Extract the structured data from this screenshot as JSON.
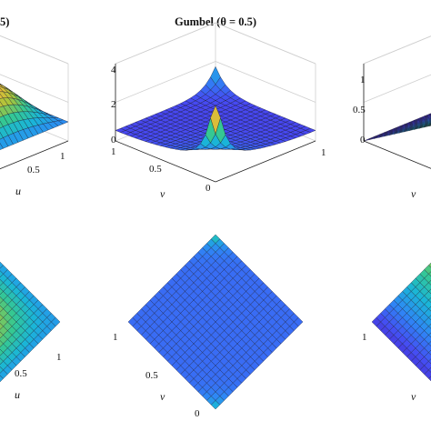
{
  "figure": {
    "left_partial_title": "5)",
    "colormap": [
      "#3e26a8",
      "#4748f2",
      "#2e87f5",
      "#1ab5d8",
      "#35c892",
      "#a8c53b",
      "#f0ba38",
      "#f9fb15"
    ]
  },
  "chart_data": [
    {
      "id": "top-left",
      "type": "surface3d",
      "title": "",
      "xlabel": "u",
      "ylabel": "",
      "visible_ticks": {
        "u": [
          "0.5",
          "1"
        ]
      },
      "surface": "Gumbel copula (partially cropped)"
    },
    {
      "id": "top-center",
      "type": "surface3d",
      "title": "Gumbel (θ = 0.5)",
      "xlabel": "",
      "ylabel": "v",
      "zlim": [
        0,
        4
      ],
      "z_ticks": [
        "0",
        "2",
        "4"
      ],
      "v_ticks": [
        "1",
        "0.5",
        "0"
      ],
      "u_ticks": [
        "1"
      ],
      "grid": true,
      "surface": "density peaks at (u,v)=(1,1) near 4, edges near 0"
    },
    {
      "id": "top-right",
      "type": "surface3d",
      "title": "",
      "xlabel": "",
      "ylabel": "v",
      "z_ticks": [
        "0",
        "0.5",
        "1"
      ],
      "surface": "cumulative surface rising to 1 (partially cropped)"
    },
    {
      "id": "bottom-left",
      "type": "heatmap",
      "title": "",
      "xlabel": "u",
      "visible_ticks": {
        "u": [
          "0.5",
          "1"
        ]
      }
    },
    {
      "id": "bottom-center",
      "type": "heatmap",
      "title": "",
      "ylabel": "v",
      "v_ticks": [
        "1",
        "0.5",
        "0"
      ],
      "note": "top view of the density; bright corners at (1,1) and (0,0)"
    },
    {
      "id": "bottom-right",
      "type": "heatmap",
      "title": "",
      "ylabel": "v",
      "v_ticks": [
        "1"
      ],
      "note": "top view of the cumulative surface (partially cropped)"
    }
  ]
}
